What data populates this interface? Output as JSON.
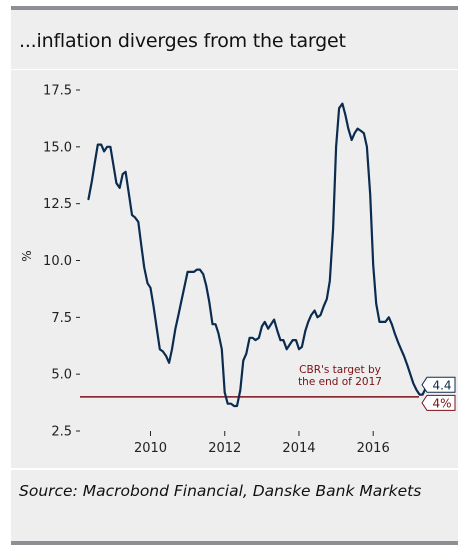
{
  "title": "...inflation diverges from the target",
  "source": "Source: Macrobond Financial, Danske Bank Markets",
  "chart_data": {
    "type": "line",
    "xlabel": "",
    "ylabel": "%",
    "xlim": [
      2008.1,
      2017.8
    ],
    "ylim": [
      2.5,
      17.5
    ],
    "x_ticks": [
      2010,
      2012,
      2014,
      2016
    ],
    "y_ticks": [
      2.5,
      5.0,
      7.5,
      10.0,
      12.5,
      15.0,
      17.5
    ],
    "y_tick_labels": [
      "2.5",
      "5.0",
      "7.5",
      "10.0",
      "12.5",
      "15.0",
      "17.5"
    ],
    "grid": false,
    "legend": "none",
    "series": [
      {
        "color": "#0b2c4f",
        "points": [
          [
            2008.33,
            12.7
          ],
          [
            2008.42,
            13.5
          ],
          [
            2008.5,
            14.3
          ],
          [
            2008.58,
            15.1
          ],
          [
            2008.67,
            15.1
          ],
          [
            2008.75,
            14.8
          ],
          [
            2008.83,
            15.0
          ],
          [
            2008.92,
            15.0
          ],
          [
            2009.0,
            14.2
          ],
          [
            2009.08,
            13.4
          ],
          [
            2009.17,
            13.2
          ],
          [
            2009.25,
            13.8
          ],
          [
            2009.33,
            13.9
          ],
          [
            2009.42,
            12.9
          ],
          [
            2009.5,
            12.0
          ],
          [
            2009.58,
            11.9
          ],
          [
            2009.67,
            11.7
          ],
          [
            2009.75,
            10.7
          ],
          [
            2009.83,
            9.7
          ],
          [
            2009.92,
            9.0
          ],
          [
            2010.0,
            8.8
          ],
          [
            2010.08,
            8.0
          ],
          [
            2010.17,
            7.0
          ],
          [
            2010.25,
            6.1
          ],
          [
            2010.33,
            6.0
          ],
          [
            2010.42,
            5.8
          ],
          [
            2010.5,
            5.5
          ],
          [
            2010.58,
            6.1
          ],
          [
            2010.67,
            7.0
          ],
          [
            2010.75,
            7.6
          ],
          [
            2010.83,
            8.2
          ],
          [
            2010.92,
            8.9
          ],
          [
            2011.0,
            9.5
          ],
          [
            2011.08,
            9.5
          ],
          [
            2011.17,
            9.5
          ],
          [
            2011.25,
            9.6
          ],
          [
            2011.33,
            9.6
          ],
          [
            2011.42,
            9.4
          ],
          [
            2011.5,
            8.9
          ],
          [
            2011.58,
            8.2
          ],
          [
            2011.67,
            7.2
          ],
          [
            2011.75,
            7.2
          ],
          [
            2011.83,
            6.8
          ],
          [
            2011.92,
            6.1
          ],
          [
            2012.0,
            4.2
          ],
          [
            2012.08,
            3.7
          ],
          [
            2012.17,
            3.7
          ],
          [
            2012.25,
            3.6
          ],
          [
            2012.33,
            3.6
          ],
          [
            2012.42,
            4.3
          ],
          [
            2012.5,
            5.6
          ],
          [
            2012.58,
            5.9
          ],
          [
            2012.67,
            6.6
          ],
          [
            2012.75,
            6.6
          ],
          [
            2012.83,
            6.5
          ],
          [
            2012.92,
            6.6
          ],
          [
            2013.0,
            7.1
          ],
          [
            2013.08,
            7.3
          ],
          [
            2013.17,
            7.0
          ],
          [
            2013.25,
            7.2
          ],
          [
            2013.33,
            7.4
          ],
          [
            2013.42,
            6.9
          ],
          [
            2013.5,
            6.5
          ],
          [
            2013.58,
            6.5
          ],
          [
            2013.67,
            6.1
          ],
          [
            2013.75,
            6.3
          ],
          [
            2013.83,
            6.5
          ],
          [
            2013.92,
            6.5
          ],
          [
            2014.0,
            6.1
          ],
          [
            2014.08,
            6.2
          ],
          [
            2014.17,
            6.9
          ],
          [
            2014.25,
            7.3
          ],
          [
            2014.33,
            7.6
          ],
          [
            2014.42,
            7.8
          ],
          [
            2014.5,
            7.5
          ],
          [
            2014.58,
            7.6
          ],
          [
            2014.67,
            8.0
          ],
          [
            2014.75,
            8.3
          ],
          [
            2014.83,
            9.1
          ],
          [
            2014.92,
            11.4
          ],
          [
            2015.0,
            15.0
          ],
          [
            2015.08,
            16.7
          ],
          [
            2015.17,
            16.9
          ],
          [
            2015.25,
            16.4
          ],
          [
            2015.33,
            15.8
          ],
          [
            2015.42,
            15.3
          ],
          [
            2015.5,
            15.6
          ],
          [
            2015.58,
            15.8
          ],
          [
            2015.67,
            15.7
          ],
          [
            2015.75,
            15.6
          ],
          [
            2015.83,
            15.0
          ],
          [
            2015.92,
            12.9
          ],
          [
            2016.0,
            9.8
          ],
          [
            2016.08,
            8.1
          ],
          [
            2016.17,
            7.3
          ],
          [
            2016.25,
            7.3
          ],
          [
            2016.33,
            7.3
          ],
          [
            2016.42,
            7.5
          ],
          [
            2016.5,
            7.2
          ],
          [
            2016.58,
            6.8
          ],
          [
            2016.67,
            6.4
          ],
          [
            2016.75,
            6.1
          ],
          [
            2016.83,
            5.8
          ],
          [
            2016.92,
            5.4
          ],
          [
            2017.0,
            5.0
          ],
          [
            2017.08,
            4.6
          ],
          [
            2017.17,
            4.3
          ],
          [
            2017.25,
            4.1
          ],
          [
            2017.33,
            4.1
          ],
          [
            2017.42,
            4.4
          ]
        ]
      }
    ],
    "target": {
      "value": 4.0,
      "color": "#7a1114",
      "annotation": [
        "CBR's target by",
        "the end of 2017"
      ]
    },
    "end_labels": [
      {
        "text": "4.4",
        "value": 4.4,
        "color": "#0b2c4f"
      },
      {
        "text": "4%",
        "value": 4.0,
        "color": "#7a1114"
      }
    ]
  }
}
